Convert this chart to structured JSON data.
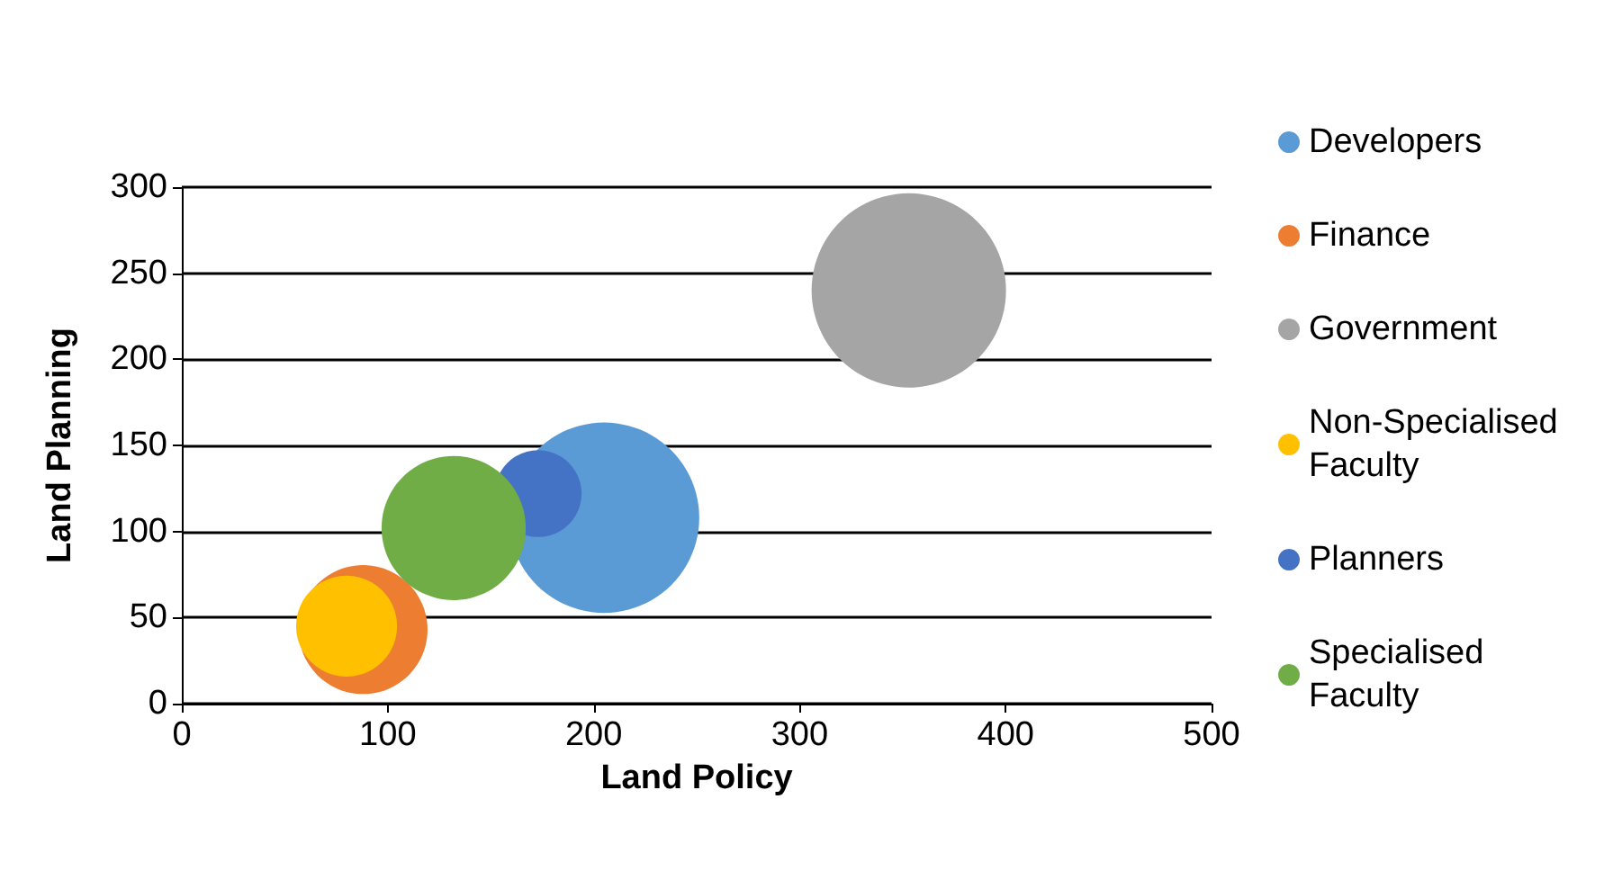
{
  "chart_data": {
    "type": "bubble",
    "xlabel": "Land Policy",
    "ylabel": "Land Planning",
    "xlim": [
      0,
      500
    ],
    "xticks": [
      0,
      100,
      200,
      300,
      400,
      500
    ],
    "ylim": [
      0,
      300
    ],
    "yticks": [
      0,
      50,
      100,
      150,
      200,
      250,
      300
    ],
    "grid": "y",
    "legend": "right",
    "series": [
      {
        "name": "Developers",
        "color": "#5b9bd5",
        "x": [
          205
        ],
        "values": [
          108
        ],
        "sizes": [
          0.96
        ]
      },
      {
        "name": "Finance",
        "color": "#ed7d31",
        "x": [
          88
        ],
        "values": [
          43
        ],
        "sizes": [
          0.44
        ]
      },
      {
        "name": "Government",
        "color": "#a5a5a5",
        "x": [
          353
        ],
        "values": [
          240
        ],
        "sizes": [
          1
        ]
      },
      {
        "name": "Non-Specialised Faculty",
        "color": "#ffc000",
        "x": [
          80
        ],
        "values": [
          45
        ],
        "sizes": [
          0.27
        ]
      },
      {
        "name": "Planners",
        "color": "#4472c4",
        "x": [
          173
        ],
        "values": [
          122
        ],
        "sizes": [
          0.2
        ]
      },
      {
        "name": "Specialised Faculty",
        "color": "#70ad47",
        "x": [
          132
        ],
        "values": [
          102
        ],
        "sizes": [
          0.55
        ]
      }
    ]
  }
}
